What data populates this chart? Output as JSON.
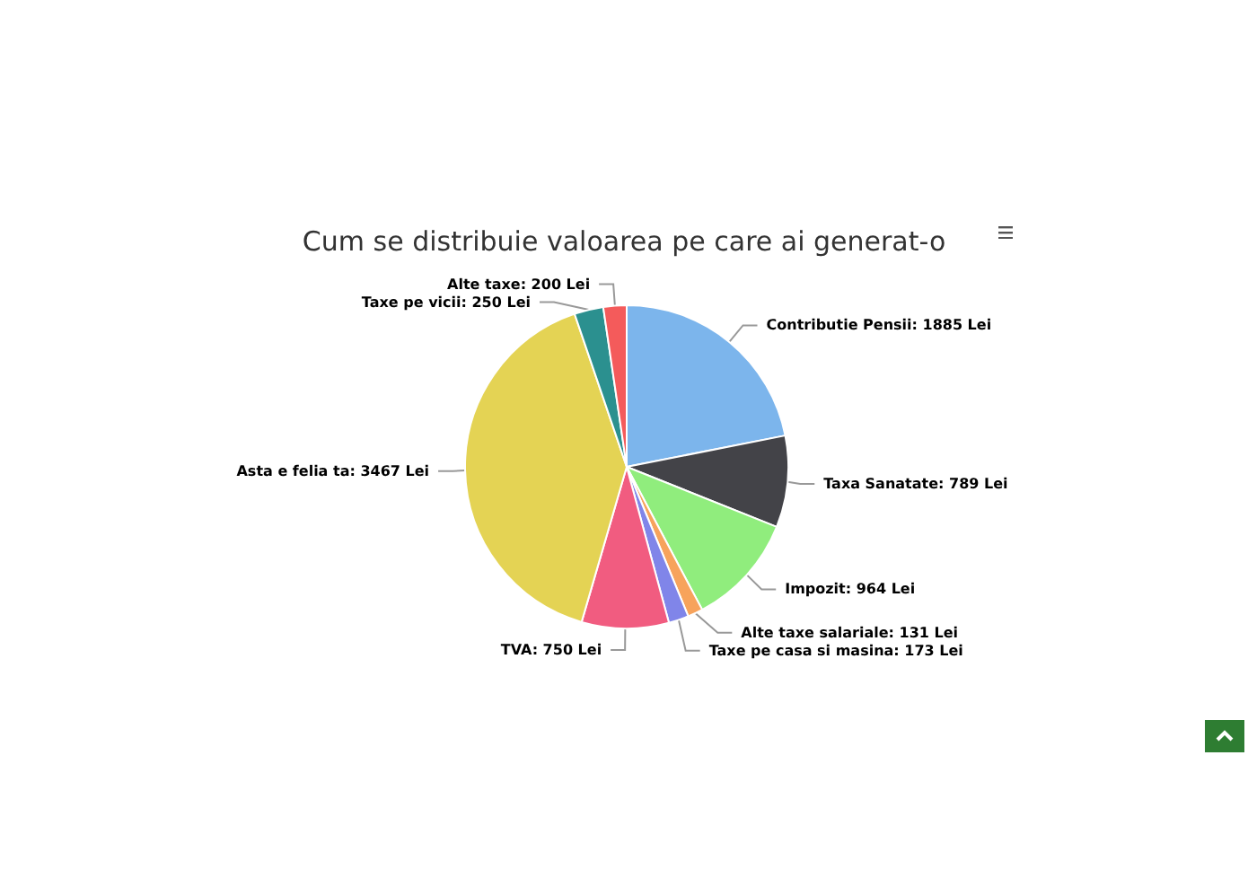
{
  "chart_data": {
    "type": "pie",
    "title": "Cum se distribuie valoarea pe care ai generat-o",
    "categories": [
      "Contributie Pensii",
      "Taxa Sanatate",
      "Impozit",
      "Alte taxe salariale",
      "Taxe pe casa si masina",
      "TVA",
      "Asta e felia ta",
      "Taxe pe vicii",
      "Alte taxe"
    ],
    "values": [
      1885,
      789,
      964,
      131,
      173,
      750,
      3467,
      250,
      200
    ],
    "value_labels": [
      "1885 Lei",
      "789 Lei",
      "964 Lei",
      "131 Lei",
      "173 Lei",
      "750 Lei",
      "3467 Lei",
      "250 Lei",
      "200 Lei"
    ],
    "colors": [
      "#7cb5ec",
      "#434348",
      "#90ed7d",
      "#f7a35c",
      "#8085e9",
      "#f15c80",
      "#e4d354",
      "#2b908f",
      "#f45b5b"
    ],
    "legend": false
  }
}
